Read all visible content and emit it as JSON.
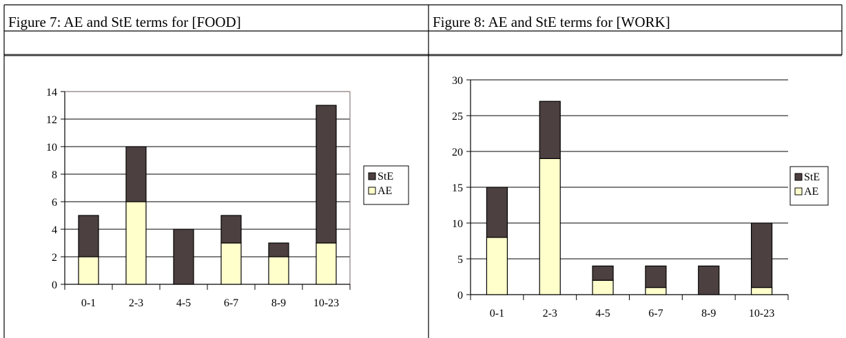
{
  "table": {
    "caption_left": "Figure 7: AE and StE terms for [FOOD]",
    "caption_right": "Figure 8: AE and StE terms for [WORK]"
  },
  "chart_data": [
    {
      "type": "bar",
      "stacked": true,
      "title": "",
      "categories": [
        "0-1",
        "2-3",
        "4-5",
        "6-7",
        "8-9",
        "10-23"
      ],
      "series": [
        {
          "name": "AE",
          "values": [
            2,
            6,
            0,
            3,
            2,
            3
          ],
          "color": "#FFFFCC"
        },
        {
          "name": "StE",
          "values": [
            3,
            4,
            4,
            2,
            1,
            10
          ],
          "color": "#4D4040"
        }
      ],
      "ylim": [
        0,
        14
      ],
      "yticks": [
        0,
        2,
        4,
        6,
        8,
        10,
        12,
        14
      ],
      "grid": true,
      "legend": "right",
      "legend_order": [
        "StE",
        "AE"
      ]
    },
    {
      "type": "bar",
      "stacked": true,
      "title": "",
      "categories": [
        "0-1",
        "2-3",
        "4-5",
        "6-7",
        "8-9",
        "10-23"
      ],
      "series": [
        {
          "name": "AE",
          "values": [
            8,
            19,
            2,
            1,
            0,
            1
          ],
          "color": "#FFFFCC"
        },
        {
          "name": "StE",
          "values": [
            7,
            8,
            2,
            3,
            4,
            9
          ],
          "color": "#4D4040"
        }
      ],
      "ylim": [
        0,
        30
      ],
      "yticks": [
        0,
        5,
        10,
        15,
        20,
        25,
        30
      ],
      "grid": true,
      "legend": "right",
      "legend_order": [
        "StE",
        "AE"
      ]
    }
  ]
}
